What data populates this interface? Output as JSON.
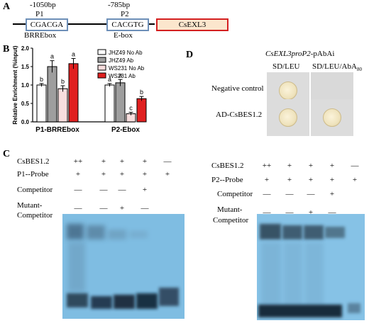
{
  "panelA": {
    "letter": "A",
    "p1_pos": "-1050bp",
    "p1_label": "P1",
    "p1_seq": "CGACGA",
    "p1_motif": "BRREbox",
    "p2_pos": "-785bp",
    "p2_label": "P2",
    "p2_seq": "CACGTG",
    "p2_motif": "E-box",
    "gene": "CsEXL3"
  },
  "panelB": {
    "letter": "B",
    "chart_data": {
      "type": "bar",
      "ylabel": "Relative Enrichment (%input)",
      "ylim": [
        0,
        2.0
      ],
      "yticks": [
        "0.0",
        "0.5",
        "1.0",
        "1.5",
        "2.0"
      ],
      "categories": [
        "P1-BRREbox",
        "P2-Ebox"
      ],
      "series": [
        {
          "name": "JHZ49 No Ab",
          "color": "#ffffff",
          "values": [
            1.0,
            1.0
          ],
          "errors": [
            0.04,
            0.04
          ],
          "letters": [
            "b",
            "a"
          ]
        },
        {
          "name": "JHZ49  Ab",
          "color": "#9e9e9e",
          "values": [
            1.5,
            1.06
          ],
          "errors": [
            0.16,
            0.09
          ],
          "letters": [
            "a",
            "a"
          ]
        },
        {
          "name": "WS231 No Ab",
          "color": "#f7dede",
          "values": [
            0.9,
            0.22
          ],
          "errors": [
            0.08,
            0.04
          ],
          "letters": [
            "b",
            "c"
          ]
        },
        {
          "name": "WS231 Ab",
          "color": "#e02020",
          "values": [
            1.58,
            0.63
          ],
          "errors": [
            0.14,
            0.06
          ],
          "letters": [
            "a",
            "b"
          ]
        }
      ]
    }
  },
  "panelD": {
    "letter": "D",
    "title_italic": "CsEXL3proP2",
    "title_rest": "-pAbAi",
    "col1": "SD/LEU",
    "col2_main": "SD/LEU/AbA",
    "col2_sub": "80",
    "row1": "Negative control",
    "row2": "AD-CsBES1.2"
  },
  "panelC": {
    "letter": "C",
    "left": {
      "rows": [
        {
          "label": "CsBES1.2",
          "cells": [
            "++",
            "+",
            "+",
            "+",
            "—"
          ]
        },
        {
          "label": "P1--Probe",
          "cells": [
            "+",
            "+",
            "+",
            "+",
            "+"
          ]
        },
        {
          "label": "Competitor",
          "cells": [
            "—",
            "—",
            "—",
            "+",
            ""
          ]
        },
        {
          "label": "Mutant-",
          "cells": [
            "",
            "",
            "",
            "",
            ""
          ]
        },
        {
          "label": "Competitor",
          "cells": [
            "—",
            "—",
            "+",
            "—",
            ""
          ]
        }
      ]
    },
    "right": {
      "rows": [
        {
          "label": "CsBES1.2",
          "cells": [
            "++",
            "+",
            "+",
            "+",
            "—"
          ]
        },
        {
          "label": "P2--Probe",
          "cells": [
            "+",
            "+",
            "+",
            "+",
            "+"
          ]
        },
        {
          "label": "Competitor",
          "cells": [
            "—",
            "—",
            "—",
            "+",
            ""
          ]
        },
        {
          "label": "Mutant-",
          "cells": [
            "",
            "",
            "",
            "",
            ""
          ]
        },
        {
          "label": "Competitor",
          "cells": [
            "—",
            "—",
            "+",
            "—",
            ""
          ]
        }
      ]
    }
  }
}
